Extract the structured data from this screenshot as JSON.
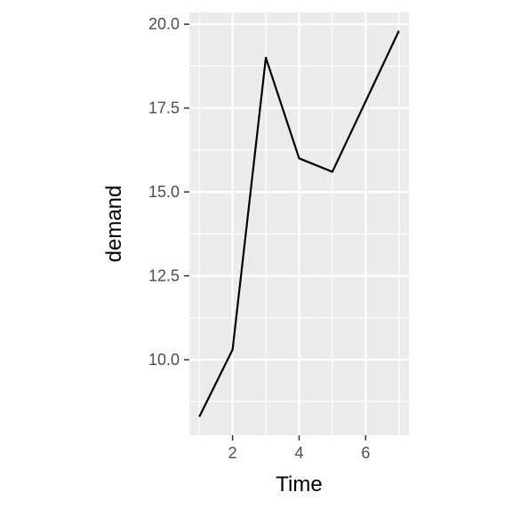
{
  "chart_data": {
    "type": "line",
    "title": "",
    "xlabel": "Time",
    "ylabel": "demand",
    "x": [
      1,
      2,
      3,
      4,
      5,
      6,
      7
    ],
    "series": [
      {
        "values": [
          8.3,
          10.3,
          19.0,
          16.0,
          15.6,
          17.7,
          19.8
        ],
        "color": "#000000"
      }
    ],
    "xlim": [
      0.7,
      7.3
    ],
    "ylim": [
      7.75,
      20.35
    ],
    "x_ticks": [
      2,
      4,
      6
    ],
    "x_tick_labels": [
      "2",
      "4",
      "6"
    ],
    "y_ticks": [
      10.0,
      12.5,
      15.0,
      17.5,
      20.0
    ],
    "y_tick_labels": [
      "10.0",
      "12.5",
      "15.0",
      "17.5",
      "20.0"
    ],
    "grid": true,
    "legend": "none",
    "panel_background": "#ebebeb",
    "grid_color": "#ffffff"
  }
}
